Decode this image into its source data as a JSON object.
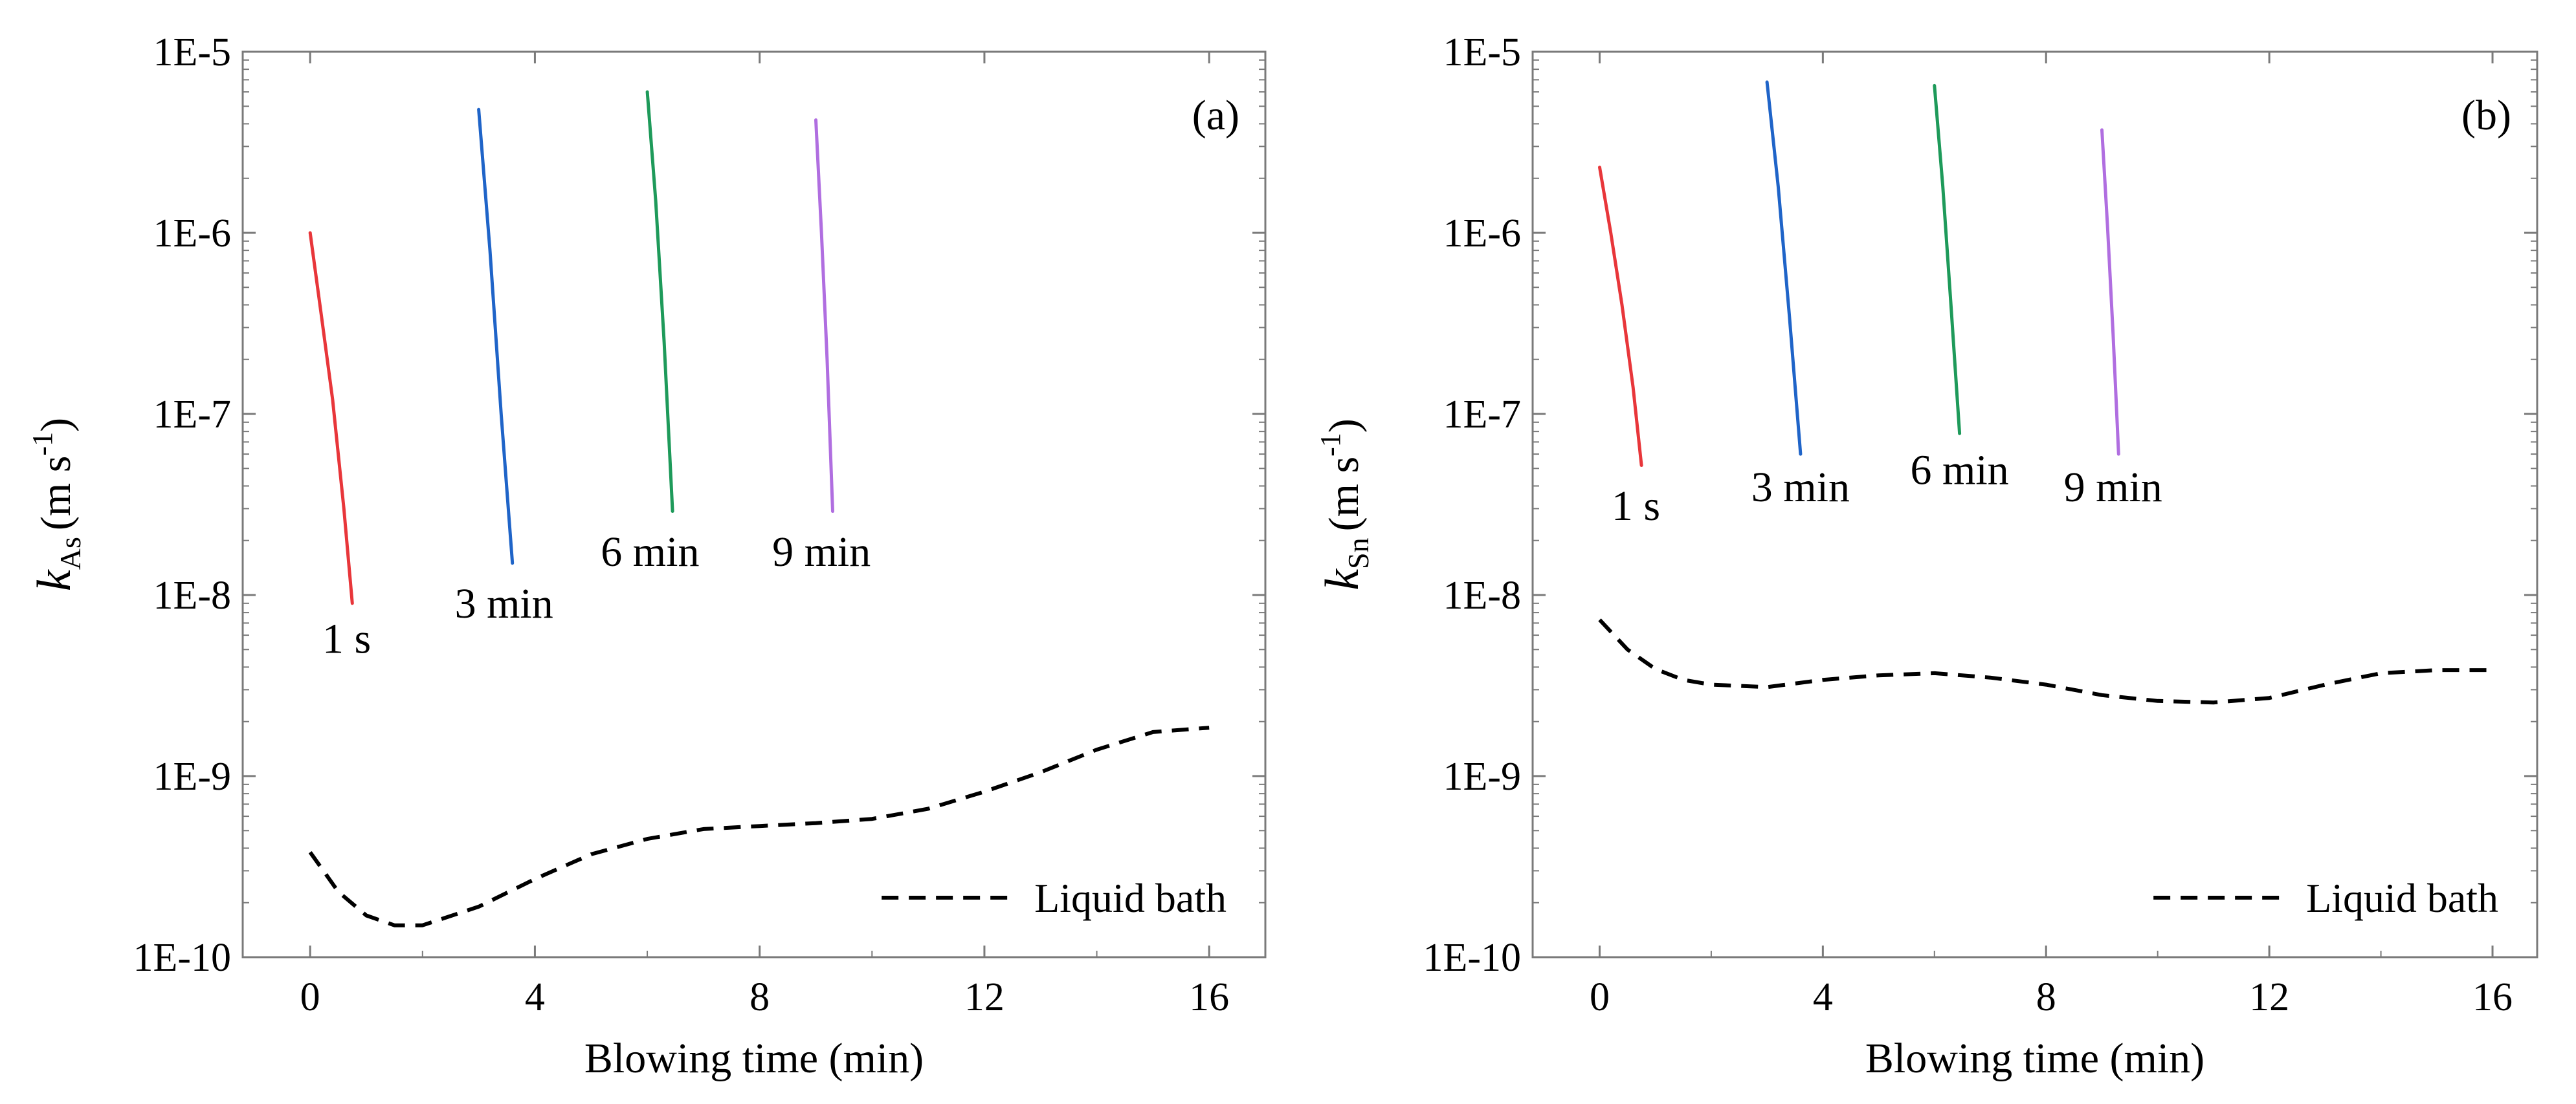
{
  "chart_data": [
    {
      "type": "line",
      "panel_label": "(a)",
      "xlabel": "Blowing time (min)",
      "ylabel": {
        "symbol": "k",
        "subscript": "As",
        "units_pre": "(m s",
        "units_sup": "-1",
        "units_post": ")"
      },
      "yscale": "log",
      "xlim": [
        -1.2,
        17
      ],
      "ylim": [
        1e-10,
        1e-05
      ],
      "x_ticks": [
        0,
        4,
        8,
        12,
        16
      ],
      "x_tick_labels": [
        "0",
        "4",
        "8",
        "12",
        "16"
      ],
      "y_ticks": [
        1e-10,
        1e-09,
        1e-08,
        1e-07,
        1e-06,
        1e-05
      ],
      "y_tick_labels": [
        "1E-10",
        "1E-9",
        "1E-8",
        "1E-7",
        "1E-6",
        "1E-5"
      ],
      "legend": {
        "position": "bottom-right",
        "entries": [
          "Liquid bath"
        ]
      },
      "series": [
        {
          "name": "1 s",
          "color": "#e8363a",
          "style": "solid",
          "x": [
            0.0,
            0.2,
            0.4,
            0.6,
            0.75
          ],
          "y": [
            1e-06,
            3.5e-07,
            1.2e-07,
            3e-08,
            9e-09
          ]
        },
        {
          "name": "3 min",
          "color": "#1f64c8",
          "style": "solid",
          "x": [
            3.0,
            3.2,
            3.4,
            3.6
          ],
          "y": [
            4.8e-06,
            8e-07,
            1e-07,
            1.5e-08
          ]
        },
        {
          "name": "6 min",
          "color": "#1e9a5a",
          "style": "solid",
          "x": [
            6.0,
            6.15,
            6.3,
            6.45
          ],
          "y": [
            6e-06,
            1.5e-06,
            2.5e-07,
            2.9e-08
          ]
        },
        {
          "name": "9 min",
          "color": "#b06ee0",
          "style": "solid",
          "x": [
            9.0,
            9.1,
            9.2,
            9.3
          ],
          "y": [
            4.2e-06,
            1e-06,
            2e-07,
            2.9e-08
          ]
        },
        {
          "name": "Liquid bath",
          "color": "#000000",
          "style": "dashed",
          "x": [
            0,
            0.5,
            1,
            1.5,
            2,
            3,
            4,
            5,
            6,
            7,
            8,
            9,
            10,
            11,
            12,
            13,
            14,
            15,
            16
          ],
          "y": [
            3.8e-10,
            2.3e-10,
            1.7e-10,
            1.5e-10,
            1.5e-10,
            1.9e-10,
            2.7e-10,
            3.7e-10,
            4.5e-10,
            5.1e-10,
            5.3e-10,
            5.5e-10,
            5.8e-10,
            6.6e-10,
            8.2e-10,
            1.05e-09,
            1.4e-09,
            1.75e-09,
            1.85e-09
          ]
        }
      ],
      "annotations": [
        {
          "text": "1 s",
          "x": 0.65,
          "y": 4.8e-09
        },
        {
          "text": "3 min",
          "x": 3.45,
          "y": 7.5e-09
        },
        {
          "text": "6 min",
          "x": 6.05,
          "y": 1.45e-08
        },
        {
          "text": "9 min",
          "x": 9.1,
          "y": 1.45e-08
        }
      ]
    },
    {
      "type": "line",
      "panel_label": "(b)",
      "xlabel": "Blowing time (min)",
      "ylabel": {
        "symbol": "k",
        "subscript": "Sn",
        "units_pre": "(m s",
        "units_sup": "-1",
        "units_post": ")"
      },
      "yscale": "log",
      "xlim": [
        -1.2,
        16.8
      ],
      "ylim": [
        1e-10,
        1e-05
      ],
      "x_ticks": [
        0,
        4,
        8,
        12,
        16
      ],
      "x_tick_labels": [
        "0",
        "4",
        "8",
        "12",
        "16"
      ],
      "y_ticks": [
        1e-10,
        1e-09,
        1e-08,
        1e-07,
        1e-06,
        1e-05
      ],
      "y_tick_labels": [
        "1E-10",
        "1E-9",
        "1E-8",
        "1E-7",
        "1E-6",
        "1E-5"
      ],
      "legend": {
        "position": "bottom-right",
        "entries": [
          "Liquid bath"
        ]
      },
      "series": [
        {
          "name": "1 s",
          "color": "#e8363a",
          "style": "solid",
          "x": [
            0.0,
            0.2,
            0.4,
            0.6,
            0.75
          ],
          "y": [
            2.3e-06,
            1e-06,
            4e-07,
            1.4e-07,
            5.2e-08
          ]
        },
        {
          "name": "3 min",
          "color": "#1f64c8",
          "style": "solid",
          "x": [
            3.0,
            3.2,
            3.4,
            3.6
          ],
          "y": [
            6.8e-06,
            1.8e-06,
            3.5e-07,
            6e-08
          ]
        },
        {
          "name": "6 min",
          "color": "#1e9a5a",
          "style": "solid",
          "x": [
            6.0,
            6.15,
            6.3,
            6.45
          ],
          "y": [
            6.5e-06,
            1.8e-06,
            3.8e-07,
            7.8e-08
          ]
        },
        {
          "name": "9 min",
          "color": "#b06ee0",
          "style": "solid",
          "x": [
            9.0,
            9.1,
            9.2,
            9.3
          ],
          "y": [
            3.7e-06,
            1.1e-06,
            2.8e-07,
            6e-08
          ]
        },
        {
          "name": "Liquid bath",
          "color": "#000000",
          "style": "dashed",
          "x": [
            0,
            0.5,
            1,
            1.5,
            2,
            3,
            4,
            5,
            6,
            7,
            8,
            9,
            10,
            11,
            12,
            13,
            14,
            15,
            16
          ],
          "y": [
            7.3e-09,
            5e-09,
            3.9e-09,
            3.4e-09,
            3.2e-09,
            3.1e-09,
            3.4e-09,
            3.6e-09,
            3.7e-09,
            3.5e-09,
            3.2e-09,
            2.8e-09,
            2.6e-09,
            2.55e-09,
            2.7e-09,
            3.2e-09,
            3.7e-09,
            3.85e-09,
            3.85e-09
          ]
        }
      ],
      "annotations": [
        {
          "text": "1 s",
          "x": 0.65,
          "y": 2.6e-08
        },
        {
          "text": "3 min",
          "x": 3.6,
          "y": 3.3e-08
        },
        {
          "text": "6 min",
          "x": 6.45,
          "y": 4.1e-08
        },
        {
          "text": "9 min",
          "x": 9.2,
          "y": 3.3e-08
        }
      ]
    }
  ]
}
